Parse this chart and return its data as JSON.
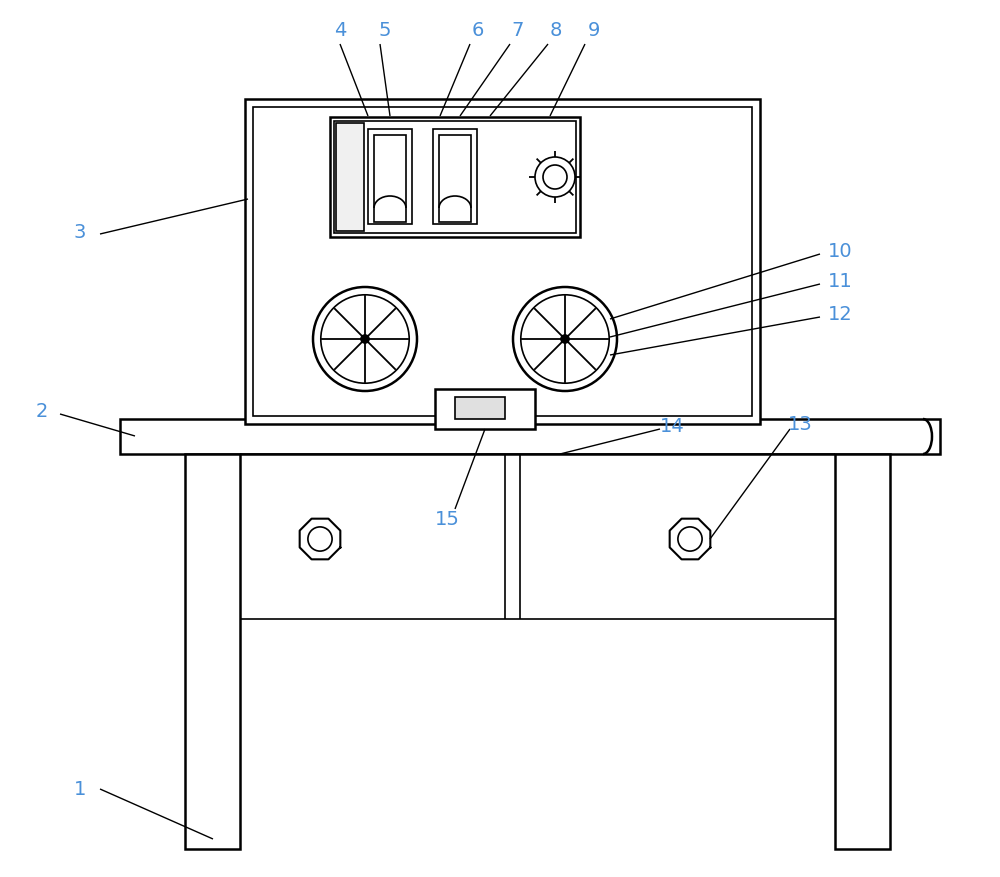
{
  "bg_color": "#ffffff",
  "line_color": "#000000",
  "fig_width": 10.0,
  "fig_height": 8.78,
  "lw_main": 1.8,
  "lw_thin": 1.2,
  "lw_annot": 1.0,
  "label_fs": 14,
  "label_color": "#4a90d9"
}
